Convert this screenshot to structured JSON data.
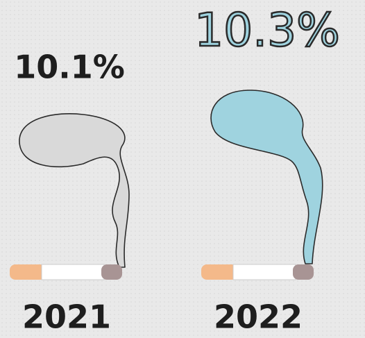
{
  "chart_data": {
    "type": "pictogram",
    "categories": [
      "2021",
      "2022"
    ],
    "values": [
      10.1,
      10.3
    ],
    "value_labels": [
      "10.1%",
      "10.3%"
    ],
    "colors": [
      "#d9d9d9",
      "#9fd3df"
    ]
  }
}
